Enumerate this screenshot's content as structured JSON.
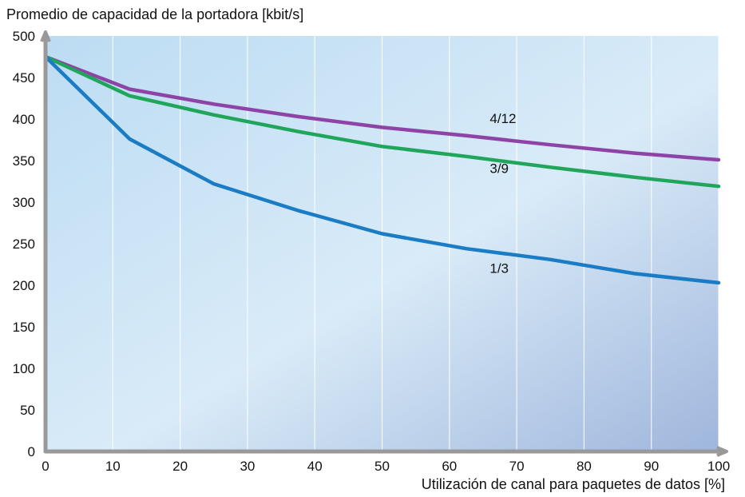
{
  "chart_data": {
    "type": "line",
    "title": "",
    "ylabel": "Promedio de capacidad de la portadora [kbit/s]",
    "xlabel": "Utilización de canal para paquetes de datos [%]",
    "xlim": [
      0,
      100
    ],
    "ylim": [
      0,
      500
    ],
    "x_ticks": [
      0,
      10,
      20,
      30,
      40,
      50,
      60,
      70,
      80,
      90,
      100
    ],
    "y_ticks": [
      0,
      50,
      100,
      150,
      200,
      250,
      300,
      350,
      400,
      450,
      500
    ],
    "grid": "vertical",
    "series": [
      {
        "name": "4/12",
        "color": "#8e44a6",
        "x": [
          0,
          12.5,
          25,
          37.5,
          50,
          62.5,
          75,
          87.5,
          100
        ],
        "y": [
          475,
          436,
          418,
          403,
          390,
          380,
          369,
          359,
          351
        ]
      },
      {
        "name": "3/9",
        "color": "#1fa65a",
        "x": [
          0,
          12.5,
          25,
          37.5,
          50,
          62.5,
          75,
          87.5,
          100
        ],
        "y": [
          475,
          428,
          405,
          385,
          367,
          355,
          342,
          330,
          319
        ]
      },
      {
        "name": "1/3",
        "color": "#1a7cc4",
        "x": [
          0,
          12.5,
          25,
          37.5,
          50,
          62.5,
          75,
          87.5,
          100
        ],
        "y": [
          475,
          376,
          322,
          290,
          262,
          244,
          231,
          214,
          203
        ]
      }
    ],
    "series_label_positions": [
      {
        "series": "4/12",
        "x": 66,
        "y": 395
      },
      {
        "series": "3/9",
        "x": 66,
        "y": 335
      },
      {
        "series": "1/3",
        "x": 66,
        "y": 215
      }
    ]
  }
}
